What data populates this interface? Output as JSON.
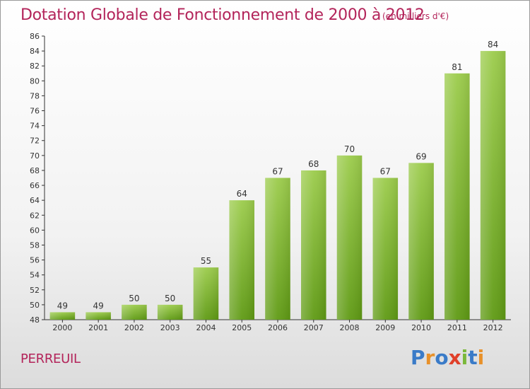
{
  "header": {
    "title": "Dotation Globale de Fonctionnement de 2000 à 2012",
    "unit": "(en milliers d'€)"
  },
  "footer": {
    "commune": "PERREUIL",
    "logo": [
      "P",
      "r",
      "o",
      "x",
      "i",
      "t",
      "i"
    ]
  },
  "colors": {
    "accent": "#b3245a",
    "bar_light": "#9ccc4c",
    "bar_dark": "#5f9a14"
  },
  "chart_data": {
    "type": "bar",
    "title": "Dotation Globale de Fonctionnement de 2000 à 2012",
    "subtitle": "(en milliers d'€)",
    "xlabel": "",
    "ylabel": "",
    "categories": [
      "2000",
      "2001",
      "2002",
      "2003",
      "2004",
      "2005",
      "2006",
      "2007",
      "2008",
      "2009",
      "2010",
      "2011",
      "2012"
    ],
    "values": [
      49,
      49,
      50,
      50,
      55,
      64,
      67,
      68,
      70,
      67,
      69,
      81,
      84
    ],
    "ylim": [
      48,
      86
    ],
    "yticks": [
      48,
      50,
      52,
      54,
      56,
      58,
      60,
      62,
      64,
      66,
      68,
      70,
      72,
      74,
      76,
      78,
      80,
      82,
      84,
      86
    ],
    "grid": false,
    "legend": "none"
  }
}
